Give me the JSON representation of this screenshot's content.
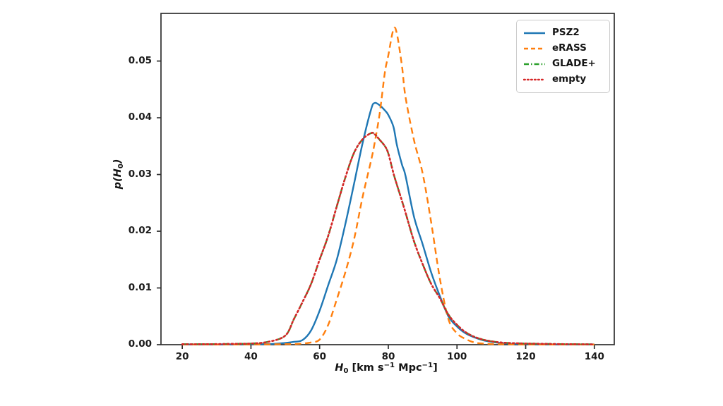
{
  "figure": {
    "background": "#ffffff",
    "frame_color": "#2f2f2f",
    "xlabel_parts": {
      "pre": "H",
      "sub": "0",
      "mid": " [km s",
      "sup1": "−1",
      "mid2": " Mpc",
      "sup2": "−1",
      "post": "]"
    },
    "ylabel_parts": {
      "pre": "p(H",
      "sub": "0",
      "post": ")"
    }
  },
  "chart_data": {
    "type": "line",
    "title": "",
    "xlabel": "H0 [km s^-1 Mpc^-1]",
    "ylabel": "p(H0)",
    "xlim": [
      13.8,
      145.8
    ],
    "ylim": [
      0,
      0.0584
    ],
    "grid": false,
    "legend_position": "upper right",
    "x_ticks": [
      20,
      40,
      60,
      80,
      100,
      120,
      140
    ],
    "x_tick_labels": [
      "20",
      "40",
      "60",
      "80",
      "100",
      "120",
      "140"
    ],
    "y_ticks": [
      0.0,
      0.01,
      0.02,
      0.03,
      0.04,
      0.05
    ],
    "y_tick_labels": [
      "0.00",
      "0.01",
      "0.02",
      "0.03",
      "0.04",
      "0.05"
    ],
    "x": [
      20,
      25,
      30,
      35,
      40,
      45,
      50,
      52.5,
      55,
      57.5,
      60,
      62.5,
      65,
      67.5,
      70,
      72.5,
      75,
      76,
      77.5,
      79,
      80,
      81.5,
      82.5,
      84,
      85,
      87.5,
      90,
      92.5,
      95,
      97.5,
      100,
      102.5,
      105,
      107.5,
      110,
      112.5,
      115,
      117.5,
      120,
      125,
      130,
      135,
      140
    ],
    "series": [
      {
        "name": "PSZ2",
        "color": "#1f77b4",
        "style": "solid",
        "peak_x": 76,
        "peak_y": 0.0426,
        "values": [
          5e-05,
          5e-05,
          5e-05,
          5e-05,
          0.0001,
          0.0001,
          0.0003,
          0.0005,
          0.0008,
          0.0025,
          0.006,
          0.0105,
          0.015,
          0.0213,
          0.0283,
          0.0355,
          0.0415,
          0.0426,
          0.0422,
          0.0413,
          0.0405,
          0.0384,
          0.0352,
          0.0317,
          0.0298,
          0.0225,
          0.0177,
          0.0127,
          0.0086,
          0.005,
          0.0032,
          0.002,
          0.0013,
          0.0008,
          0.0005,
          0.0003,
          0.0002,
          0.00015,
          0.0001,
          8e-05,
          5e-05,
          5e-05,
          5e-05
        ]
      },
      {
        "name": "eRASS",
        "color": "#ff7f0e",
        "style": "dashed",
        "peak_x": 81.5,
        "peak_y": 0.0556,
        "values": [
          3e-05,
          3e-05,
          3e-05,
          3e-05,
          5e-05,
          5e-05,
          0.0001,
          0.0001,
          0.0002,
          0.0004,
          0.0009,
          0.0035,
          0.008,
          0.0128,
          0.0185,
          0.026,
          0.0325,
          0.0355,
          0.0408,
          0.048,
          0.051,
          0.0556,
          0.0548,
          0.049,
          0.0437,
          0.036,
          0.0302,
          0.0215,
          0.0117,
          0.0045,
          0.002,
          0.001,
          0.0004,
          0.0002,
          0.0001,
          8e-05,
          5e-05,
          5e-05,
          3e-05,
          3e-05,
          3e-05,
          3e-05,
          3e-05
        ]
      },
      {
        "name": "GLADE+",
        "color": "#2ca02c",
        "style": "dashdot",
        "peak_x": 75,
        "peak_y": 0.0373,
        "values": [
          8e-05,
          8e-05,
          0.0001,
          0.00015,
          0.0002,
          0.0005,
          0.0016,
          0.0045,
          0.0075,
          0.0107,
          0.015,
          0.0192,
          0.0244,
          0.0295,
          0.0338,
          0.0362,
          0.0373,
          0.0371,
          0.0361,
          0.035,
          0.0337,
          0.0302,
          0.0282,
          0.0253,
          0.0233,
          0.0182,
          0.0142,
          0.0107,
          0.0082,
          0.0053,
          0.0035,
          0.0022,
          0.0014,
          0.0009,
          0.0006,
          0.0004,
          0.0003,
          0.00025,
          0.0002,
          0.00015,
          0.0001,
          8e-05,
          5e-05
        ]
      },
      {
        "name": "empty",
        "color": "#d62728",
        "style": "dotted",
        "peak_x": 75,
        "peak_y": 0.0373,
        "values": [
          8e-05,
          8e-05,
          0.0001,
          0.00015,
          0.0002,
          0.0005,
          0.0016,
          0.0045,
          0.0075,
          0.0107,
          0.015,
          0.0192,
          0.0244,
          0.0295,
          0.0338,
          0.0362,
          0.0373,
          0.0371,
          0.0361,
          0.035,
          0.0337,
          0.0302,
          0.0282,
          0.0253,
          0.0233,
          0.0182,
          0.0142,
          0.0107,
          0.0082,
          0.0053,
          0.0035,
          0.0022,
          0.0014,
          0.0009,
          0.0006,
          0.0004,
          0.0003,
          0.00025,
          0.0002,
          0.00015,
          0.0001,
          8e-05,
          5e-05
        ]
      }
    ]
  }
}
